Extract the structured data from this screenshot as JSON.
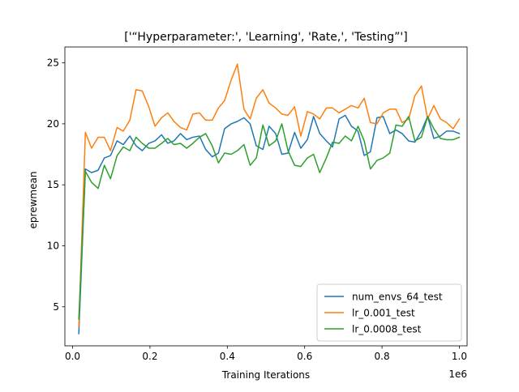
{
  "chart_data": {
    "type": "line",
    "title": "['“Hyperparameter:', 'Learning', 'Rate,', 'Testing”']",
    "xlabel": "Training Iterations",
    "ylabel": "eprewmean",
    "x_offset_label": "1e6",
    "xlim": [
      -0.02,
      1.02
    ],
    "ylim": [
      1.8,
      26.3
    ],
    "x_ticks": [
      0.0,
      0.2,
      0.4,
      0.6,
      0.8,
      1.0
    ],
    "x_tick_labels": [
      "0.0",
      "0.2",
      "0.4",
      "0.6",
      "0.8",
      "1.0"
    ],
    "y_ticks": [
      5,
      10,
      15,
      20,
      25
    ],
    "y_tick_labels": [
      "5",
      "10",
      "15",
      "20",
      "25"
    ],
    "grid": false,
    "legend_position": "lower-right",
    "x": [
      0.016,
      0.033,
      0.049,
      0.066,
      0.082,
      0.098,
      0.115,
      0.131,
      0.148,
      0.164,
      0.18,
      0.197,
      0.213,
      0.23,
      0.246,
      0.262,
      0.279,
      0.295,
      0.311,
      0.328,
      0.344,
      0.361,
      0.377,
      0.393,
      0.41,
      0.426,
      0.443,
      0.459,
      0.475,
      0.492,
      0.508,
      0.525,
      0.541,
      0.557,
      0.574,
      0.59,
      0.607,
      0.623,
      0.639,
      0.656,
      0.672,
      0.689,
      0.705,
      0.721,
      0.738,
      0.754,
      0.77,
      0.787,
      0.803,
      0.82,
      0.836,
      0.852,
      0.869,
      0.885,
      0.902,
      0.918,
      0.934,
      0.951,
      0.967,
      0.984,
      1.0
    ],
    "series": [
      {
        "name": "num_envs_64_test",
        "color": "#1f77b4",
        "values": [
          2.8,
          16.3,
          16.0,
          16.2,
          17.2,
          17.4,
          18.6,
          18.3,
          19.0,
          18.2,
          17.8,
          18.4,
          18.6,
          19.1,
          18.4,
          18.6,
          19.2,
          18.7,
          18.9,
          19.0,
          17.9,
          17.3,
          17.6,
          19.6,
          20.0,
          20.2,
          20.5,
          20.0,
          18.2,
          17.9,
          19.8,
          19.2,
          17.5,
          17.6,
          19.3,
          18.0,
          18.7,
          20.6,
          19.2,
          18.6,
          18.1,
          20.4,
          20.7,
          19.8,
          19.4,
          17.4,
          17.7,
          20.5,
          20.6,
          19.2,
          19.5,
          19.2,
          18.6,
          18.5,
          19.4,
          20.6,
          18.8,
          19.0,
          19.4,
          19.4,
          19.2
        ]
      },
      {
        "name": "lr_0.001_test",
        "color": "#ff7f0e",
        "values": [
          3.4,
          19.3,
          18.0,
          18.9,
          18.9,
          17.8,
          19.7,
          19.4,
          20.3,
          22.8,
          22.7,
          21.4,
          19.8,
          20.5,
          20.9,
          20.2,
          19.7,
          19.5,
          20.8,
          20.9,
          20.3,
          20.3,
          21.3,
          21.9,
          23.6,
          24.9,
          21.2,
          20.4,
          22.1,
          22.8,
          21.7,
          21.3,
          20.8,
          20.7,
          21.4,
          19.0,
          21.0,
          20.8,
          20.4,
          21.3,
          21.3,
          20.9,
          21.2,
          21.5,
          21.3,
          22.1,
          20.1,
          20.0,
          20.9,
          21.2,
          21.2,
          20.1,
          20.4,
          22.3,
          23.1,
          20.4,
          21.5,
          20.4,
          20.1,
          19.6,
          20.4
        ]
      },
      {
        "name": "lr_0.0008_test",
        "color": "#2ca02c",
        "values": [
          4.0,
          16.1,
          15.2,
          14.7,
          16.6,
          15.5,
          17.4,
          18.1,
          17.8,
          18.9,
          18.4,
          18.0,
          18.0,
          18.4,
          18.8,
          18.3,
          18.4,
          18.0,
          18.4,
          18.9,
          19.2,
          18.2,
          16.8,
          17.6,
          17.5,
          17.8,
          18.3,
          16.6,
          17.2,
          19.9,
          18.2,
          18.6,
          20.0,
          17.8,
          16.6,
          16.5,
          17.2,
          17.5,
          16.0,
          17.2,
          18.5,
          18.4,
          19.0,
          18.6,
          19.8,
          18.6,
          16.3,
          17.0,
          17.2,
          17.6,
          19.9,
          19.8,
          20.6,
          18.6,
          18.9,
          20.6,
          19.6,
          18.8,
          18.7,
          18.7,
          18.9
        ]
      }
    ]
  }
}
